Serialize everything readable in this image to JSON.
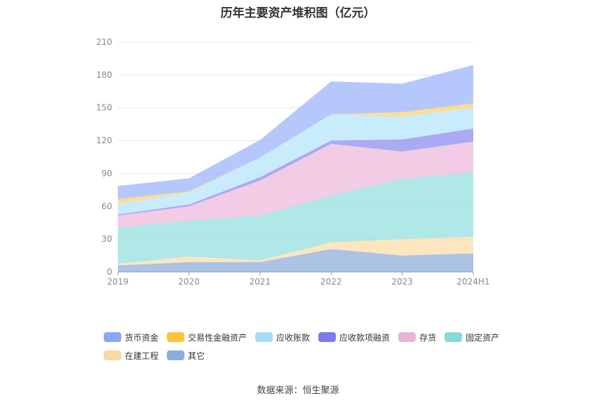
{
  "chart_data": {
    "type": "area",
    "stacked": true,
    "title": "历年主要资产堆积图（亿元）",
    "categories": [
      "2019",
      "2020",
      "2021",
      "2022",
      "2023",
      "2024H1"
    ],
    "ylim": [
      0,
      210
    ],
    "yticks": [
      "0",
      "30",
      "60",
      "90",
      "120",
      "150",
      "180",
      "210"
    ],
    "series": [
      {
        "name": "其它",
        "color": "#8fb0dd",
        "values": [
          6,
          9,
          9,
          21,
          15,
          17
        ]
      },
      {
        "name": "在建工程",
        "color": "#fcdca9",
        "values": [
          1.5,
          5,
          1.5,
          6,
          15,
          15
        ]
      },
      {
        "name": "固定资产",
        "color": "#96dfdf",
        "values": [
          33,
          33,
          41,
          43,
          55,
          59
        ]
      },
      {
        "name": "存货",
        "color": "#eeb9dc",
        "values": [
          11,
          13,
          32,
          47,
          25,
          28
        ]
      },
      {
        "name": "应收款项融资",
        "color": "#8e8ef2",
        "values": [
          1,
          1.5,
          3,
          3,
          11,
          12
        ]
      },
      {
        "name": "应收账款",
        "color": "#b5e6fa",
        "values": [
          10,
          11,
          18,
          24,
          21,
          19
        ]
      },
      {
        "name": "交易性金融资产",
        "color": "#fdd26a",
        "values": [
          4,
          1,
          0,
          0,
          4,
          4
        ]
      },
      {
        "name": "货币资金",
        "color": "#9db4fb",
        "values": [
          12,
          12,
          16,
          30,
          26,
          35
        ]
      }
    ]
  },
  "legend_order": [
    "货币资金",
    "交易性金融资产",
    "应收账款",
    "应收款项融资",
    "存货",
    "固定资产",
    "在建工程",
    "其它"
  ],
  "legend_colors": {
    "货币资金": "#8aa6f8",
    "交易性金融资产": "#fcc53a",
    "应收账款": "#a6dcf6",
    "应收款项融资": "#7b7bee",
    "存货": "#e8b4d8",
    "固定资产": "#88d8d8",
    "在建工程": "#fbd9a3",
    "其它": "#8aaedc"
  },
  "source": "数据来源：恒生聚源"
}
